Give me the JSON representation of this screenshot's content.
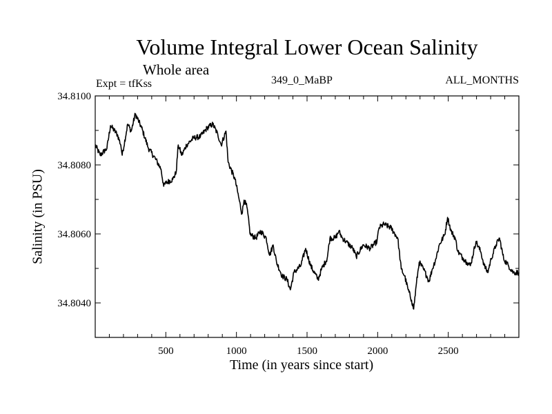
{
  "chart_data": {
    "type": "line",
    "title": "Volume Integral Lower Ocean Salinity",
    "subtitle": "Whole area",
    "annotations": {
      "experiment": "Expt = tfKss",
      "case": "349_0_MaBP",
      "months": "ALL_MONTHS"
    },
    "xlabel": "Time (in years since start)",
    "ylabel": "Salinity (in PSU)",
    "xlim": [
      0,
      3000
    ],
    "ylim": [
      34.803,
      34.81
    ],
    "xticks_major": [
      500,
      1000,
      1500,
      2000,
      2500
    ],
    "xtick_labels": [
      "500",
      "1000",
      "1500",
      "2000",
      "2500"
    ],
    "xtick_minor_step": 100,
    "yticks_major": [
      34.804,
      34.806,
      34.808,
      34.81
    ],
    "ytick_labels": [
      "34.8040",
      "34.8060",
      "34.8080",
      "34.8100"
    ],
    "ytick_minor_step": 0.001,
    "grid": false,
    "series": [
      {
        "name": "Salinity",
        "color": "#000000",
        "x": [
          0,
          35,
          83,
          108,
          157,
          181,
          191,
          230,
          255,
          284,
          328,
          377,
          426,
          466,
          485,
          500,
          549,
          573,
          588,
          613,
          647,
          696,
          745,
          794,
          833,
          868,
          892,
          926,
          941,
          990,
          1015,
          1039,
          1054,
          1074,
          1098,
          1137,
          1172,
          1211,
          1235,
          1260,
          1284,
          1324,
          1358,
          1382,
          1407,
          1456,
          1490,
          1525,
          1578,
          1603,
          1642,
          1662,
          1701,
          1725,
          1750,
          1775,
          1824,
          1848,
          1897,
          1946,
          1995,
          2010,
          2044,
          2093,
          2142,
          2167,
          2191,
          2216,
          2240,
          2255,
          2275,
          2294,
          2324,
          2348,
          2363,
          2387,
          2412,
          2436,
          2475,
          2495,
          2520,
          2549,
          2569,
          2608,
          2632,
          2657,
          2696,
          2730,
          2755,
          2779,
          2804,
          2838,
          2863,
          2892,
          2926,
          2961,
          3000
        ],
        "y": [
          34.80858,
          34.80828,
          34.80848,
          34.80914,
          34.80888,
          34.80858,
          34.80828,
          34.80918,
          34.80898,
          34.80948,
          34.80908,
          34.80848,
          34.80818,
          34.80788,
          34.80738,
          34.80748,
          34.80758,
          34.80778,
          34.80858,
          34.80828,
          34.80858,
          34.80878,
          34.80882,
          34.80908,
          34.80918,
          34.80888,
          34.80858,
          34.80898,
          34.80808,
          34.80758,
          34.80708,
          34.80658,
          34.80698,
          34.80678,
          34.80598,
          34.80588,
          34.80608,
          34.80588,
          34.80538,
          34.80568,
          34.80518,
          34.80478,
          34.80468,
          34.80438,
          34.80488,
          34.80508,
          34.80558,
          34.80508,
          34.80468,
          34.80498,
          34.80528,
          34.80588,
          34.80588,
          34.80608,
          34.80588,
          34.80578,
          34.80558,
          34.80534,
          34.80568,
          34.80558,
          34.80578,
          34.80618,
          34.80628,
          34.80618,
          34.80588,
          34.80498,
          34.80478,
          34.80438,
          34.80408,
          34.80382,
          34.80458,
          34.80518,
          34.80498,
          34.80478,
          34.80462,
          34.80498,
          34.80528,
          34.80568,
          34.80598,
          34.80648,
          34.80608,
          34.80588,
          34.80548,
          34.80528,
          34.80518,
          34.80508,
          34.80578,
          34.80548,
          34.80508,
          34.80488,
          34.80528,
          34.80568,
          34.80588,
          34.80528,
          34.80508,
          34.80488,
          34.80488
        ]
      }
    ]
  }
}
